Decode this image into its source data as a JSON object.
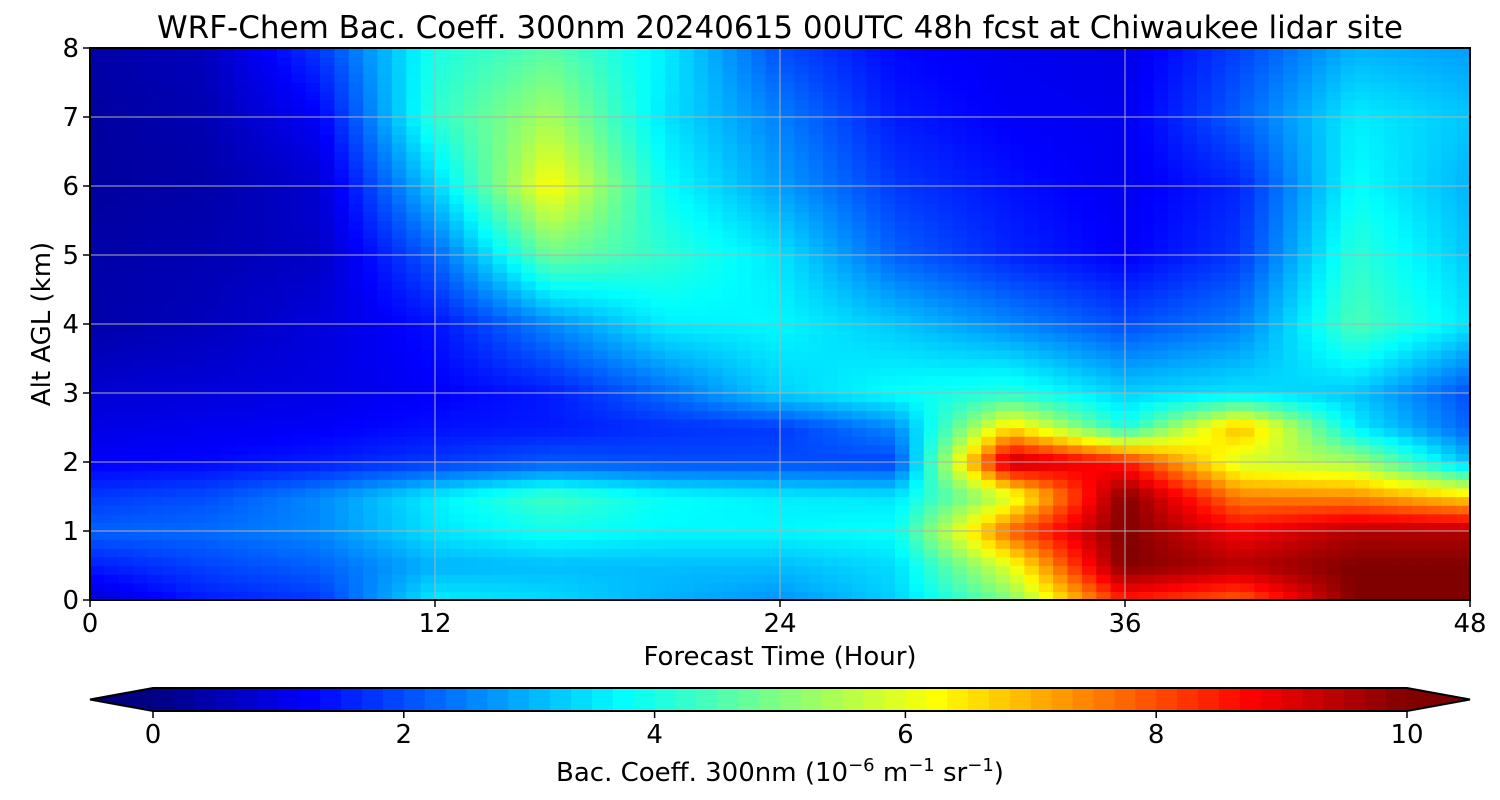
{
  "chart_data": {
    "type": "heatmap",
    "title": "WRF-Chem Bac. Coeff. 300nm  20240615 00UTC 48h fcst at Chiwaukee lidar site",
    "xlabel": "Forecast Time (Hour)",
    "ylabel": "Alt AGL (km)",
    "xlim": [
      0,
      48
    ],
    "ylim": [
      0,
      8
    ],
    "x_ticks": [
      0,
      12,
      24,
      36,
      48
    ],
    "x_tick_labels": [
      "0",
      "12",
      "24",
      "36",
      "48"
    ],
    "y_ticks": [
      0,
      1,
      2,
      3,
      4,
      5,
      6,
      7,
      8
    ],
    "y_tick_labels": [
      "0",
      "1",
      "2",
      "3",
      "4",
      "5",
      "6",
      "7",
      "8"
    ],
    "grid": true,
    "colormap": "jet",
    "colorbar": {
      "orientation": "horizontal",
      "position": "bottom",
      "extend": "both",
      "range": [
        0,
        10
      ],
      "ticks": [
        0,
        2,
        4,
        6,
        8,
        10
      ],
      "tick_labels": [
        "0",
        "2",
        "4",
        "6",
        "8",
        "10"
      ],
      "label_main": "Bac. Coeff. 300nm  (10",
      "label_exp1": "−6",
      "label_mid": " m",
      "label_exp2": "−1",
      "label_mid2": " sr",
      "label_exp3": "−1",
      "label_end": ")"
    },
    "x": [
      0,
      4,
      8,
      12,
      16,
      20,
      24,
      28,
      32,
      36,
      40,
      44,
      48
    ],
    "y": [
      0,
      0.5,
      1,
      1.5,
      2,
      2.5,
      3,
      4,
      5,
      6,
      7,
      8
    ],
    "z": [
      [
        0.8,
        1.5,
        1.8,
        3.6,
        3.4,
        3.0,
        2.7,
        3.3,
        5.0,
        8.5,
        7.8,
        10,
        10
      ],
      [
        1.5,
        1.9,
        2.2,
        3.0,
        3.1,
        3.1,
        3.1,
        3.4,
        6.0,
        10,
        9.5,
        10,
        10
      ],
      [
        2.2,
        2.3,
        2.6,
        3.5,
        3.9,
        3.7,
        3.7,
        3.8,
        7.8,
        10,
        8.8,
        9.5,
        9.5
      ],
      [
        1.8,
        2.0,
        2.6,
        3.6,
        4.4,
        3.8,
        3.6,
        3.5,
        5.8,
        10,
        7.5,
        7.4,
        6.6
      ],
      [
        1.2,
        1.3,
        1.5,
        1.8,
        2.1,
        2.0,
        2.0,
        1.9,
        9.5,
        8.5,
        5.8,
        5.4,
        3.1
      ],
      [
        1.0,
        1.1,
        1.2,
        1.4,
        1.5,
        1.7,
        1.8,
        2.6,
        6.6,
        4.0,
        7.0,
        3.6,
        2.2
      ],
      [
        0.8,
        0.9,
        1.0,
        1.2,
        1.5,
        2.3,
        3.3,
        3.8,
        4.1,
        3.3,
        3.5,
        3.2,
        2.0
      ],
      [
        0.4,
        0.6,
        0.9,
        1.4,
        2.6,
        3.6,
        3.7,
        3.2,
        2.6,
        2.0,
        2.5,
        4.5,
        3.5
      ],
      [
        0.4,
        0.5,
        0.7,
        2.2,
        4.8,
        4.2,
        3.5,
        2.2,
        1.6,
        1.2,
        1.8,
        4.2,
        3.2
      ],
      [
        0.3,
        0.4,
        0.8,
        3.3,
        6.3,
        3.8,
        2.8,
        1.8,
        1.4,
        1.1,
        1.6,
        3.8,
        3.0
      ],
      [
        0.3,
        0.5,
        1.2,
        4.2,
        5.4,
        3.5,
        2.5,
        1.5,
        1.2,
        1.1,
        2.2,
        3.6,
        3.2
      ],
      [
        0.4,
        0.6,
        1.8,
        4.0,
        4.6,
        3.6,
        2.0,
        1.3,
        1.1,
        1.0,
        1.9,
        3.0,
        2.8
      ]
    ]
  }
}
